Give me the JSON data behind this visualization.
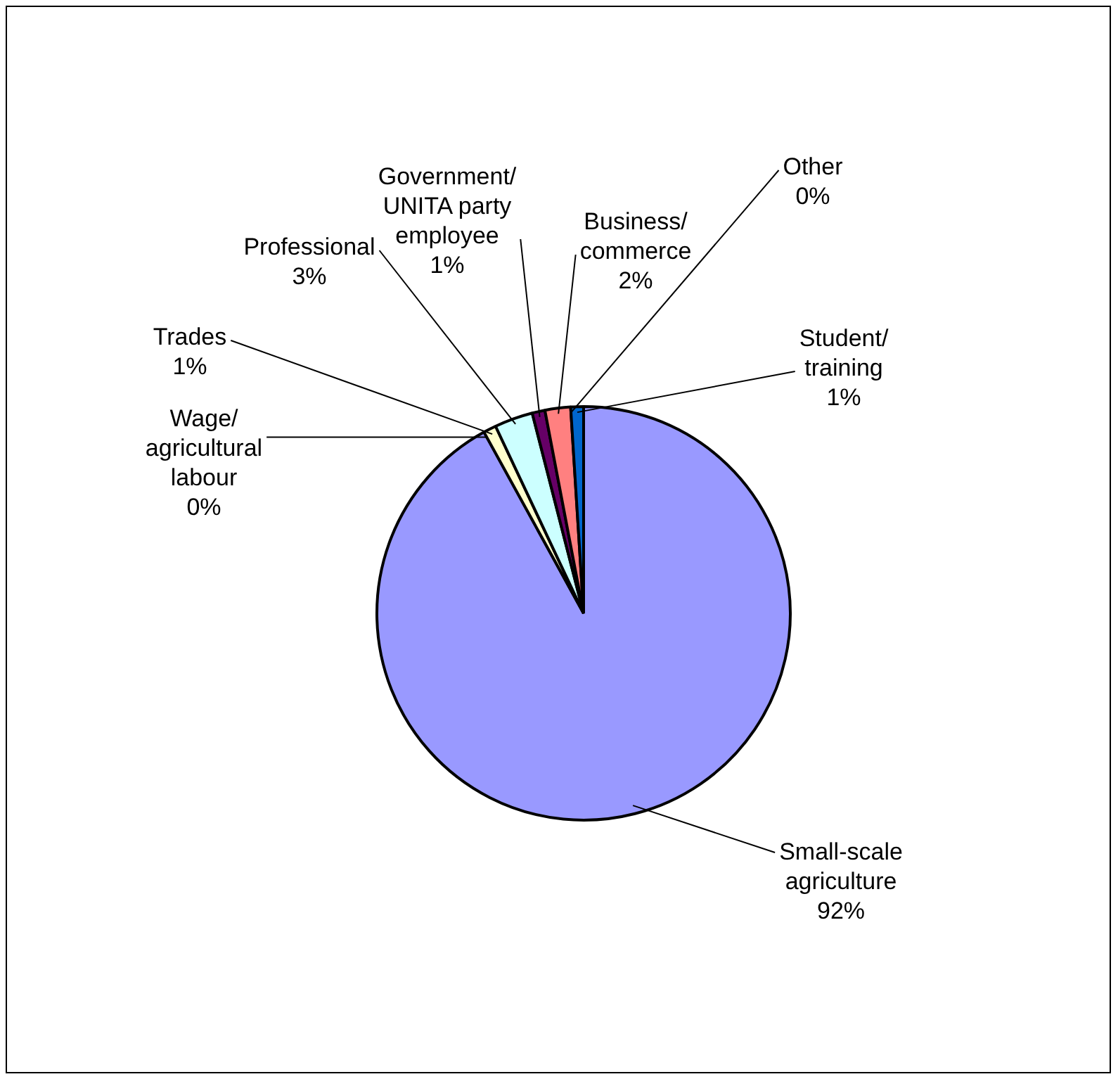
{
  "chart_data": {
    "type": "pie",
    "categories": [
      "Small-scale agriculture",
      "Wage/ agricultural labour",
      "Trades",
      "Professional",
      "Government/ UNITA party employee",
      "Business/ commerce",
      "Other",
      "Student/ training"
    ],
    "values": [
      92,
      0,
      1,
      3,
      1,
      2,
      0,
      1
    ],
    "value_labels": [
      "92%",
      "0%",
      "1%",
      "3%",
      "1%",
      "2%",
      "0%",
      "1%"
    ],
    "colors": [
      "#9999ff",
      "#ffffff",
      "#ffffcc",
      "#ccffff",
      "#660066",
      "#ff8080",
      "#000000",
      "#0066cc"
    ],
    "legend": false
  }
}
